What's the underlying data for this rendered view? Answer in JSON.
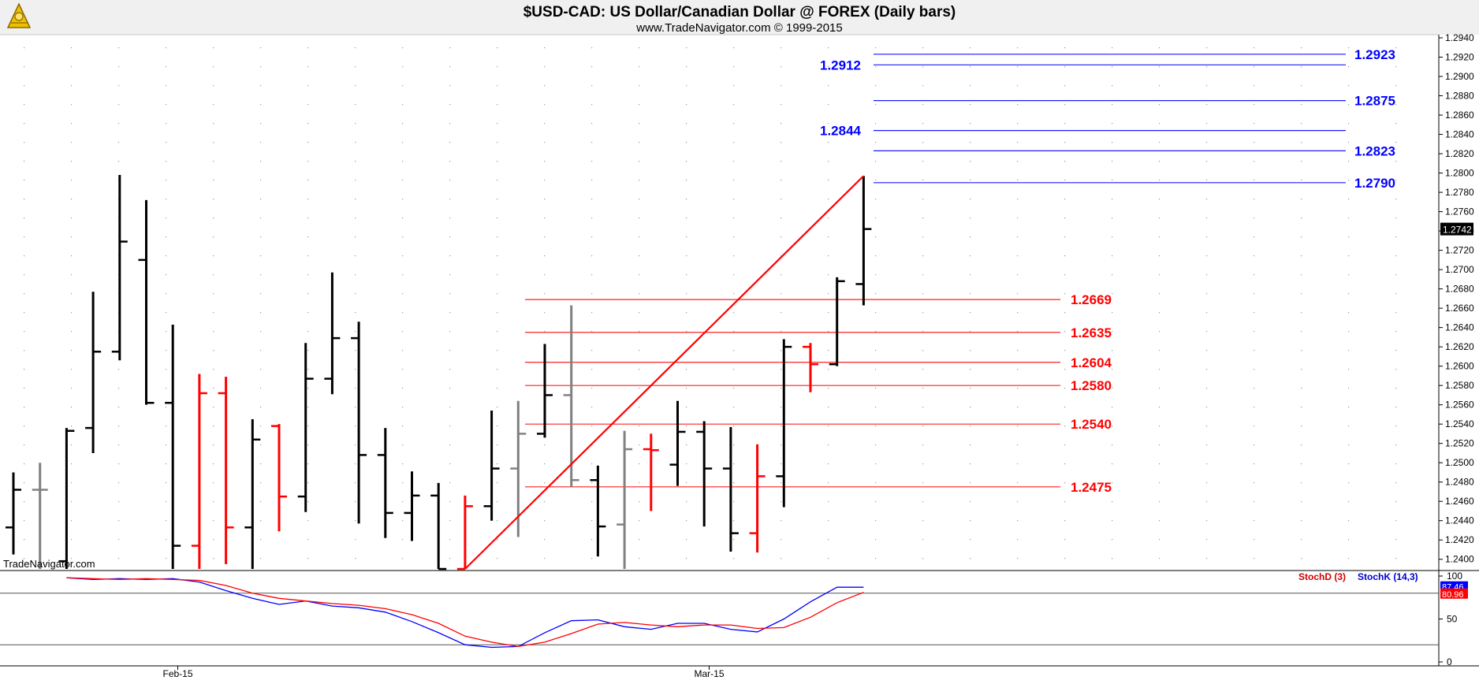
{
  "header": {
    "title": "$USD-CAD:  US Dollar/Canadian Dollar @ FOREX  (Daily bars)",
    "subtitle": "www.TradeNavigator.com © 1999-2015",
    "watermark": "TradeNavigator.com"
  },
  "chart_data": [
    {
      "type": "ohlc",
      "title": "$USD-CAD:  US Dollar/Canadian Dollar @ FOREX  (Daily bars)",
      "ylim": [
        1.239,
        1.294
      ],
      "y_ticks": [
        "1.2940",
        "1.2920",
        "1.2900",
        "1.2880",
        "1.2860",
        "1.2840",
        "1.2820",
        "1.2800",
        "1.2780",
        "1.2760",
        "1.2740",
        "1.2720",
        "1.2700",
        "1.2680",
        "1.2660",
        "1.2640",
        "1.2620",
        "1.2600",
        "1.2580",
        "1.2560",
        "1.2540",
        "1.2520",
        "1.2500",
        "1.2480",
        "1.2460",
        "1.2440",
        "1.2420",
        "1.2400"
      ],
      "x_labels": [
        {
          "label": "Feb-15",
          "bar": 5
        },
        {
          "label": "Mar-15",
          "bar": 25
        }
      ],
      "last_price_label": "1.2742",
      "bars": [
        {
          "o": 1.2433,
          "h": 1.249,
          "l": 1.2405,
          "c": 1.2472,
          "color": "#000000"
        },
        {
          "o": 1.2472,
          "h": 1.25,
          "l": 1.239,
          "c": 1.2472,
          "color": "#808080"
        },
        {
          "o": 1.2398,
          "h": 1.2536,
          "l": 1.239,
          "c": 1.2533,
          "color": "#000000"
        },
        {
          "o": 1.2536,
          "h": 1.2677,
          "l": 1.251,
          "c": 1.2615,
          "color": "#000000"
        },
        {
          "o": 1.2615,
          "h": 1.2798,
          "l": 1.2606,
          "c": 1.2729,
          "color": "#000000"
        },
        {
          "o": 1.271,
          "h": 1.2772,
          "l": 1.256,
          "c": 1.2562,
          "color": "#000000"
        },
        {
          "o": 1.2562,
          "h": 1.2643,
          "l": 1.239,
          "c": 1.2414,
          "color": "#000000"
        },
        {
          "o": 1.2414,
          "h": 1.2592,
          "l": 1.239,
          "c": 1.2572,
          "color": "#ff0000"
        },
        {
          "o": 1.2572,
          "h": 1.2589,
          "l": 1.2395,
          "c": 1.2433,
          "color": "#ff0000"
        },
        {
          "o": 1.2433,
          "h": 1.2545,
          "l": 1.239,
          "c": 1.2524,
          "color": "#000000"
        },
        {
          "o": 1.2538,
          "h": 1.254,
          "l": 1.2429,
          "c": 1.2465,
          "color": "#ff0000"
        },
        {
          "o": 1.2465,
          "h": 1.2624,
          "l": 1.2449,
          "c": 1.2587,
          "color": "#000000"
        },
        {
          "o": 1.2587,
          "h": 1.2697,
          "l": 1.2571,
          "c": 1.2629,
          "color": "#000000"
        },
        {
          "o": 1.2629,
          "h": 1.2646,
          "l": 1.2437,
          "c": 1.2508,
          "color": "#000000"
        },
        {
          "o": 1.2508,
          "h": 1.2536,
          "l": 1.2422,
          "c": 1.2448,
          "color": "#000000"
        },
        {
          "o": 1.2448,
          "h": 1.2491,
          "l": 1.2419,
          "c": 1.2466,
          "color": "#000000"
        },
        {
          "o": 1.2466,
          "h": 1.2479,
          "l": 1.239,
          "c": 1.239,
          "color": "#000000"
        },
        {
          "o": 1.239,
          "h": 1.2466,
          "l": 1.239,
          "c": 1.2455,
          "color": "#ff0000"
        },
        {
          "o": 1.2455,
          "h": 1.2554,
          "l": 1.244,
          "c": 1.2494,
          "color": "#000000"
        },
        {
          "o": 1.2494,
          "h": 1.2564,
          "l": 1.2423,
          "c": 1.253,
          "color": "#808080"
        },
        {
          "o": 1.253,
          "h": 1.2623,
          "l": 1.2526,
          "c": 1.257,
          "color": "#000000"
        },
        {
          "o": 1.257,
          "h": 1.2663,
          "l": 1.2475,
          "c": 1.2482,
          "color": "#808080"
        },
        {
          "o": 1.2482,
          "h": 1.2497,
          "l": 1.2403,
          "c": 1.2434,
          "color": "#000000"
        },
        {
          "o": 1.2436,
          "h": 1.2533,
          "l": 1.239,
          "c": 1.2514,
          "color": "#808080"
        },
        {
          "o": 1.2514,
          "h": 1.253,
          "l": 1.245,
          "c": 1.2513,
          "color": "#ff0000"
        },
        {
          "o": 1.2498,
          "h": 1.2564,
          "l": 1.2476,
          "c": 1.2532,
          "color": "#000000"
        },
        {
          "o": 1.2532,
          "h": 1.2543,
          "l": 1.2434,
          "c": 1.2494,
          "color": "#000000"
        },
        {
          "o": 1.2494,
          "h": 1.2537,
          "l": 1.2408,
          "c": 1.2427,
          "color": "#000000"
        },
        {
          "o": 1.2427,
          "h": 1.2519,
          "l": 1.2407,
          "c": 1.2486,
          "color": "#ff0000"
        },
        {
          "o": 1.2486,
          "h": 1.2628,
          "l": 1.2454,
          "c": 1.262,
          "color": "#000000"
        },
        {
          "o": 1.262,
          "h": 1.2624,
          "l": 1.2573,
          "c": 1.2602,
          "color": "#ff0000"
        },
        {
          "o": 1.2602,
          "h": 1.2692,
          "l": 1.26,
          "c": 1.2688,
          "color": "#000000"
        },
        {
          "o": 1.2685,
          "h": 1.2797,
          "l": 1.2663,
          "c": 1.2742,
          "color": "#000000"
        }
      ],
      "trend_line": {
        "from_bar": 17,
        "from_price": 1.239,
        "to_bar": 32,
        "to_price": 1.2797,
        "color": "#ff0000"
      },
      "levels_red": [
        {
          "value": 1.2669,
          "label": "1.2669"
        },
        {
          "value": 1.2635,
          "label": "1.2635"
        },
        {
          "value": 1.2604,
          "label": "1.2604"
        },
        {
          "value": 1.258,
          "label": "1.2580"
        },
        {
          "value": 1.254,
          "label": "1.2540"
        },
        {
          "value": 1.2475,
          "label": "1.2475"
        }
      ],
      "levels_blue": [
        {
          "value": 1.2923,
          "label": "1.2923",
          "side": "right"
        },
        {
          "value": 1.2912,
          "label": "1.2912",
          "side": "left"
        },
        {
          "value": 1.2875,
          "label": "1.2875",
          "side": "right"
        },
        {
          "value": 1.2844,
          "label": "1.2844",
          "side": "left"
        },
        {
          "value": 1.2823,
          "label": "1.2823",
          "side": "right"
        },
        {
          "value": 1.279,
          "label": "1.2790",
          "side": "right"
        }
      ]
    },
    {
      "type": "line",
      "title": "",
      "ylim": [
        0,
        100
      ],
      "y_ticks": [
        "100",
        "50",
        "0"
      ],
      "reference_lines": [
        80,
        20
      ],
      "legend": [
        "StochD (3)",
        "StochK (14,3)"
      ],
      "last_values": {
        "stochk": "87.46",
        "stochd": "80.96"
      },
      "series": [
        {
          "name": "StochK (14,3)",
          "color": "#0000ff",
          "values": [
            98,
            96,
            97,
            96,
            97,
            93,
            83,
            74,
            67,
            71,
            65,
            63,
            58,
            47,
            34,
            20,
            17,
            18,
            34,
            48,
            49,
            41,
            38,
            45,
            45,
            38,
            35,
            50,
            70,
            87,
            87
          ]
        },
        {
          "name": "StochD (3)",
          "color": "#ff0000",
          "values": [
            98,
            97,
            96,
            97,
            96,
            95,
            89,
            80,
            74,
            71,
            68,
            66,
            62,
            55,
            45,
            30,
            23,
            18,
            23,
            33,
            44,
            46,
            43,
            41,
            43,
            43,
            39,
            40,
            52,
            69,
            81
          ]
        }
      ]
    }
  ],
  "colors": {
    "up_bar": "#000000",
    "neutral_bar": "#808080",
    "down_bar": "#ff0000",
    "red_level": "#ff0000",
    "blue_level": "#0000ff"
  },
  "icons": {
    "logo": "sextant-logo-icon"
  }
}
